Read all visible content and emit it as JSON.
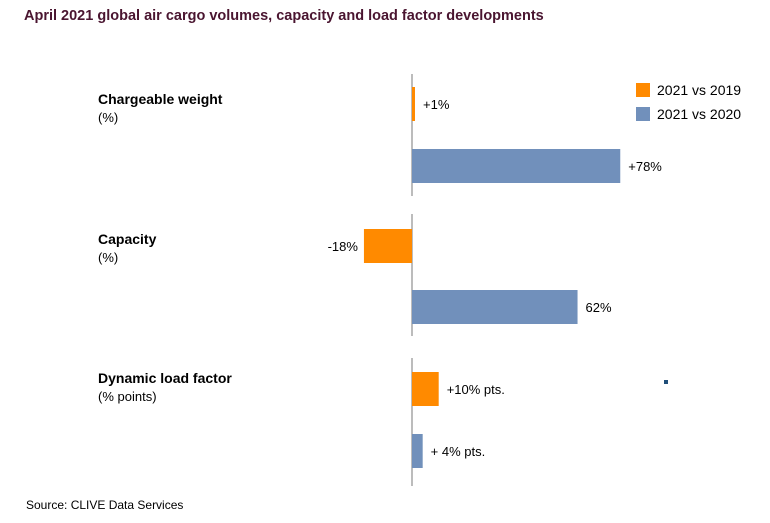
{
  "title": "April 2021 global air cargo volumes, capacity and load factor developments",
  "source": "Source: CLIVE Data Services",
  "colors": {
    "series_2019": "#ff8a00",
    "series_2020": "#7190bb",
    "title": "#4a1530"
  },
  "chart_data": {
    "type": "bar",
    "orientation": "horizontal",
    "categories": [
      {
        "name": "Chargeable weight",
        "unit": "(%)"
      },
      {
        "name": "Capacity",
        "unit": "(%)"
      },
      {
        "name": "Dynamic load factor",
        "unit": "(% points)"
      }
    ],
    "series": [
      {
        "name": "2021 vs 2019",
        "values": [
          1,
          -18,
          10
        ],
        "labels": [
          "+1%",
          "-18%",
          "+10% pts."
        ]
      },
      {
        "name": "2021 vs 2020",
        "values": [
          78,
          62,
          4
        ],
        "labels": [
          "+78%",
          "62%",
          "+ 4% pts."
        ]
      }
    ],
    "legend_position": "top-right",
    "grid": false
  }
}
